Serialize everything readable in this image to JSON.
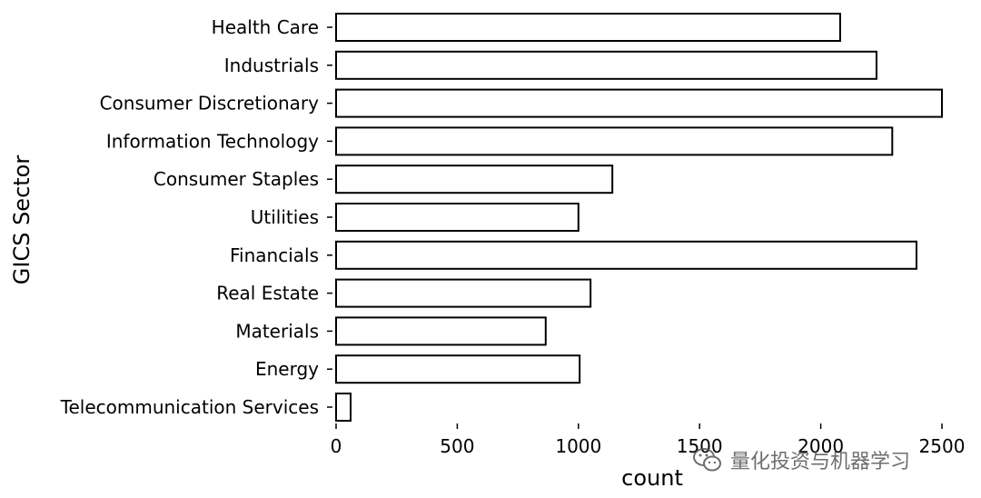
{
  "chart_data": {
    "type": "bar",
    "orientation": "horizontal",
    "categories": [
      "Health Care",
      "Industrials",
      "Consumer Discretionary",
      "Information Technology",
      "Consumer Staples",
      "Utilities",
      "Financials",
      "Real Estate",
      "Materials",
      "Energy",
      "Telecommunication Services"
    ],
    "values": [
      2080,
      2230,
      2500,
      2295,
      1140,
      1000,
      2395,
      1050,
      865,
      1005,
      60
    ],
    "xlabel": "count",
    "ylabel": "GICS Sector",
    "xticks": [
      0,
      500,
      1000,
      1500,
      2000,
      2500
    ],
    "xlim": [
      0,
      2500
    ],
    "grid": false,
    "colors": {
      "bar_fill": "#ffffff",
      "bar_edge": "#000000"
    }
  },
  "watermark": {
    "text": "量化投资与机器学习",
    "icon": "wechat-icon"
  }
}
